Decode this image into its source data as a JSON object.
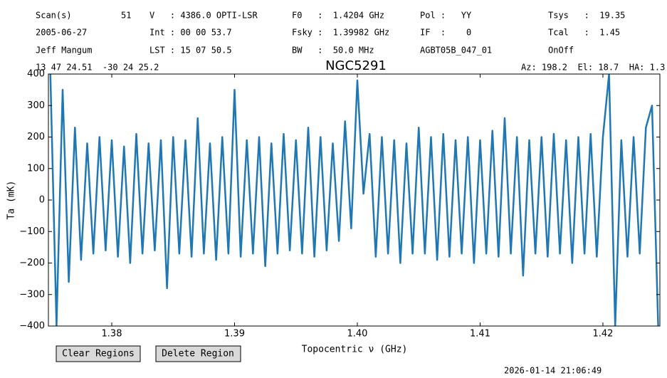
{
  "header": {
    "rows": [
      [
        "Scan(s)",
        "51",
        "V   : 4386.0 OPTI-LSR",
        "F0   :  1.4204 GHz",
        "Pol :   YY",
        "Tsys   :  19.35"
      ],
      [
        "2005-06-27",
        "Int : 00 00 53.7",
        "Fsky :  1.39982 GHz",
        "IF  :    0",
        "Tcal   :  1.45"
      ],
      [
        "Jeff Mangum",
        "LST : 15 07 50.5",
        "BW   :  50.0 MHz",
        "AGBT05B_047_01",
        "OnOff"
      ]
    ],
    "position": "13 47 24.51  -30 24 25.2",
    "pointing": "Az: 198.2  El: 18.7  HA: 1.3"
  },
  "buttons": [
    "Clear Regions",
    "Delete Region"
  ],
  "timestamp": "2026-01-14 21:06:49",
  "chart_data": {
    "type": "line",
    "title": "NGC5291",
    "x_label": "Topocentric ν (GHz)",
    "y_label": "Ta (mK)",
    "xlim": [
      1.37484,
      1.42464
    ],
    "ylim": [
      -400,
      400
    ],
    "xticks": [
      1.38,
      1.39,
      {
        "value": 1.4,
        "label": "1.40"
      },
      1.41,
      1.42
    ],
    "yticks": [
      {
        "value": -400,
        "label": "−400"
      },
      {
        "value": -300,
        "label": "−300"
      },
      {
        "value": -200,
        "label": "−200"
      },
      {
        "value": -100,
        "label": "−100"
      },
      0,
      100,
      200,
      300,
      400
    ],
    "series": [
      {
        "color": "#1f77b4",
        "x": [
          1.375,
          1.3755,
          1.376,
          1.3765,
          1.377,
          1.3775,
          1.378,
          1.3785,
          1.379,
          1.3795,
          1.38,
          1.3805,
          1.381,
          1.3815,
          1.382,
          1.3825,
          1.383,
          1.3835,
          1.384,
          1.3845,
          1.385,
          1.3855,
          1.386,
          1.3865,
          1.387,
          1.3875,
          1.388,
          1.3885,
          1.389,
          1.3895,
          1.39,
          1.3905,
          1.391,
          1.3915,
          1.392,
          1.3925,
          1.393,
          1.3935,
          1.394,
          1.3945,
          1.395,
          1.3955,
          1.396,
          1.3965,
          1.397,
          1.3975,
          1.398,
          1.3985,
          1.399,
          1.3995,
          1.4,
          1.4005,
          1.401,
          1.4015,
          1.402,
          1.4025,
          1.403,
          1.4035,
          1.404,
          1.4045,
          1.405,
          1.4055,
          1.406,
          1.4065,
          1.407,
          1.4075,
          1.408,
          1.4085,
          1.409,
          1.4095,
          1.41,
          1.4105,
          1.411,
          1.4115,
          1.412,
          1.4125,
          1.413,
          1.4135,
          1.414,
          1.4145,
          1.415,
          1.4155,
          1.416,
          1.4165,
          1.417,
          1.4175,
          1.418,
          1.4185,
          1.419,
          1.4195,
          1.42,
          1.4205,
          1.421,
          1.4215,
          1.422,
          1.4225,
          1.423,
          1.4235,
          1.424,
          1.4245
        ],
        "values": [
          400,
          -400,
          350,
          -260,
          230,
          -190,
          180,
          -170,
          200,
          -160,
          190,
          -180,
          170,
          -200,
          210,
          -170,
          180,
          -160,
          190,
          -280,
          200,
          -170,
          190,
          -180,
          260,
          -170,
          180,
          -190,
          200,
          -170,
          350,
          -180,
          190,
          -170,
          200,
          -210,
          180,
          -170,
          210,
          -160,
          190,
          -170,
          230,
          -180,
          200,
          -160,
          180,
          -130,
          250,
          -90,
          380,
          20,
          210,
          -180,
          200,
          -170,
          190,
          -200,
          180,
          -170,
          230,
          -170,
          200,
          -190,
          210,
          -180,
          190,
          -170,
          200,
          -200,
          190,
          -170,
          220,
          -180,
          260,
          -170,
          200,
          -240,
          190,
          -170,
          200,
          -180,
          210,
          -170,
          190,
          -200,
          200,
          -170,
          210,
          -180,
          200,
          400,
          -400,
          190,
          -180,
          200,
          -170,
          230,
          300,
          -400
        ]
      }
    ]
  }
}
